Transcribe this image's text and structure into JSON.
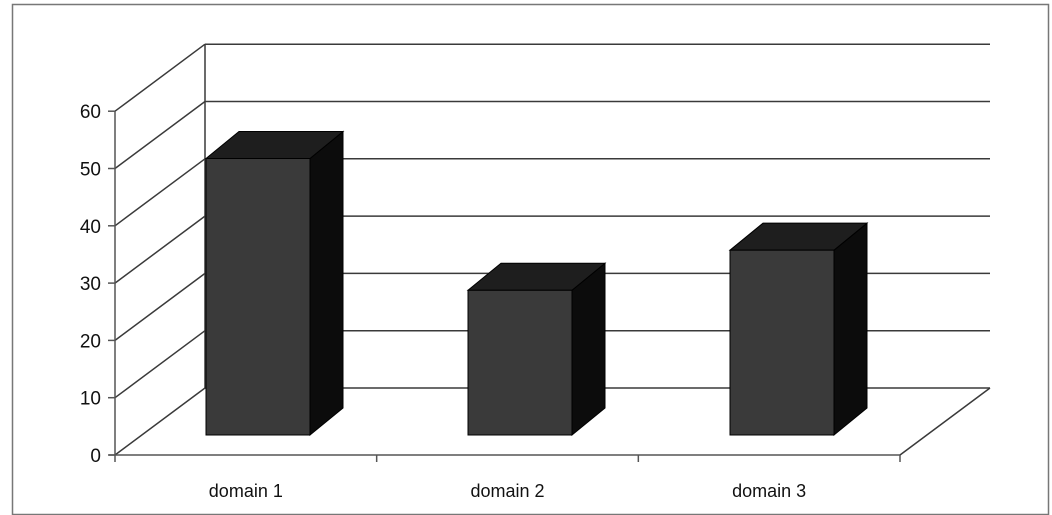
{
  "chart_data": {
    "type": "bar",
    "style": "3d-column",
    "categories": [
      "domain 1",
      "domain 2",
      "domain 3"
    ],
    "values": [
      50,
      27,
      34
    ],
    "ylim": [
      0,
      60
    ],
    "yticks": [
      0,
      10,
      20,
      30,
      40,
      50,
      60
    ],
    "yticks_text": [
      "0",
      "10",
      "20",
      "30",
      "40",
      "50",
      "60"
    ],
    "grid": true,
    "legend": "none",
    "colors": {
      "bar_front": "#3a3a3a",
      "bar_top": "#1e1e1e",
      "bar_side": "#0c0c0c",
      "grid": "#3a3a3a",
      "axis": "#555555"
    }
  }
}
